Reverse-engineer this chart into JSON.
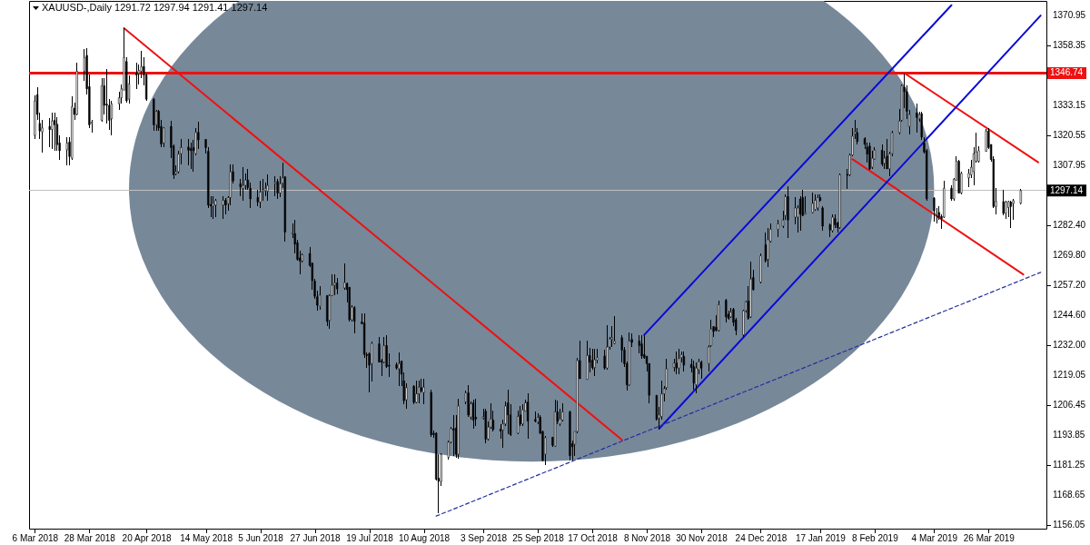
{
  "chart_data": {
    "type": "candlestick",
    "title": "XAUUSD-,Daily 1291.72 1297.94 1291.41 1297.14",
    "x": [
      "2018-03-06",
      "2018-03-07",
      "2018-03-08",
      "2018-03-09",
      "2018-03-12",
      "2018-03-13",
      "2018-03-14",
      "2018-03-15",
      "2018-03-16",
      "2018-03-19",
      "2018-03-20",
      "2018-03-21",
      "2018-03-22",
      "2018-03-23",
      "2018-03-26",
      "2018-03-27",
      "2018-03-28",
      "2018-03-29",
      "2018-04-02",
      "2018-04-03",
      "2018-04-04",
      "2018-04-05",
      "2018-04-06",
      "2018-04-09",
      "2018-04-10",
      "2018-04-11",
      "2018-04-12",
      "2018-04-13",
      "2018-04-16",
      "2018-04-17",
      "2018-04-18",
      "2018-04-19",
      "2018-04-20",
      "2018-04-23",
      "2018-04-24",
      "2018-04-25",
      "2018-04-26",
      "2018-04-27",
      "2018-04-30",
      "2018-05-01",
      "2018-05-02",
      "2018-05-03",
      "2018-05-04",
      "2018-05-07",
      "2018-05-08",
      "2018-05-09",
      "2018-05-10",
      "2018-05-11",
      "2018-05-14",
      "2018-05-15",
      "2018-05-16",
      "2018-05-17",
      "2018-05-18",
      "2018-05-21",
      "2018-05-22",
      "2018-05-23",
      "2018-05-24",
      "2018-05-25",
      "2018-05-28",
      "2018-05-29",
      "2018-05-30",
      "2018-05-31",
      "2018-06-01",
      "2018-06-04",
      "2018-06-05",
      "2018-06-06",
      "2018-06-07",
      "2018-06-08",
      "2018-06-11",
      "2018-06-12",
      "2018-06-13",
      "2018-06-14",
      "2018-06-15",
      "2018-06-18",
      "2018-06-19",
      "2018-06-20",
      "2018-06-21",
      "2018-06-22",
      "2018-06-25",
      "2018-06-26",
      "2018-06-27",
      "2018-06-28",
      "2018-06-29",
      "2018-07-02",
      "2018-07-03",
      "2018-07-04",
      "2018-07-05",
      "2018-07-06",
      "2018-07-09",
      "2018-07-10",
      "2018-07-11",
      "2018-07-12",
      "2018-07-13",
      "2018-07-16",
      "2018-07-17",
      "2018-07-18",
      "2018-07-19",
      "2018-07-20",
      "2018-07-23",
      "2018-07-24",
      "2018-07-25",
      "2018-07-26",
      "2018-07-27",
      "2018-07-30",
      "2018-07-31",
      "2018-08-01",
      "2018-08-02",
      "2018-08-03",
      "2018-08-06",
      "2018-08-07",
      "2018-08-08",
      "2018-08-09",
      "2018-08-10",
      "2018-08-13",
      "2018-08-14",
      "2018-08-15",
      "2018-08-16",
      "2018-08-17",
      "2018-08-20",
      "2018-08-21",
      "2018-08-22",
      "2018-08-23",
      "2018-08-24",
      "2018-08-27",
      "2018-08-28",
      "2018-08-29",
      "2018-08-30",
      "2018-08-31",
      "2018-09-03",
      "2018-09-04",
      "2018-09-05",
      "2018-09-06",
      "2018-09-07",
      "2018-09-10",
      "2018-09-11",
      "2018-09-12",
      "2018-09-13",
      "2018-09-14",
      "2018-09-17",
      "2018-09-18",
      "2018-09-19",
      "2018-09-20",
      "2018-09-21",
      "2018-09-24",
      "2018-09-25",
      "2018-09-26",
      "2018-09-27",
      "2018-09-28",
      "2018-10-01",
      "2018-10-02",
      "2018-10-03",
      "2018-10-04",
      "2018-10-05",
      "2018-10-08",
      "2018-10-09",
      "2018-10-10",
      "2018-10-11",
      "2018-10-12",
      "2018-10-15",
      "2018-10-16",
      "2018-10-17",
      "2018-10-18",
      "2018-10-19",
      "2018-10-22",
      "2018-10-23",
      "2018-10-24",
      "2018-10-25",
      "2018-10-26",
      "2018-10-29",
      "2018-10-30",
      "2018-10-31",
      "2018-11-01",
      "2018-11-02",
      "2018-11-05",
      "2018-11-06",
      "2018-11-07",
      "2018-11-08",
      "2018-11-09",
      "2018-11-12",
      "2018-11-13",
      "2018-11-14",
      "2018-11-15",
      "2018-11-16",
      "2018-11-19",
      "2018-11-20",
      "2018-11-21",
      "2018-11-22",
      "2018-11-23",
      "2018-11-26",
      "2018-11-27",
      "2018-11-28",
      "2018-11-29",
      "2018-11-30",
      "2018-12-03",
      "2018-12-04",
      "2018-12-05",
      "2018-12-06",
      "2018-12-07",
      "2018-12-10",
      "2018-12-11",
      "2018-12-12",
      "2018-12-13",
      "2018-12-14",
      "2018-12-17",
      "2018-12-18",
      "2018-12-19",
      "2018-12-20",
      "2018-12-21",
      "2018-12-24",
      "2018-12-26",
      "2018-12-27",
      "2018-12-28",
      "2018-12-31",
      "2019-01-02",
      "2019-01-03",
      "2019-01-04",
      "2019-01-07",
      "2019-01-08",
      "2019-01-09",
      "2019-01-10",
      "2019-01-11",
      "2019-01-14",
      "2019-01-15",
      "2019-01-16",
      "2019-01-17",
      "2019-01-18",
      "2019-01-21",
      "2019-01-22",
      "2019-01-23",
      "2019-01-24",
      "2019-01-25",
      "2019-01-28",
      "2019-01-29",
      "2019-01-30",
      "2019-01-31",
      "2019-02-01",
      "2019-02-04",
      "2019-02-05",
      "2019-02-06",
      "2019-02-07",
      "2019-02-08",
      "2019-02-11",
      "2019-02-12",
      "2019-02-13",
      "2019-02-14",
      "2019-02-15",
      "2019-02-18",
      "2019-02-19",
      "2019-02-20",
      "2019-02-21",
      "2019-02-22",
      "2019-02-25",
      "2019-02-26",
      "2019-02-27",
      "2019-02-28",
      "2019-03-01",
      "2019-03-04",
      "2019-03-05",
      "2019-03-06",
      "2019-03-07",
      "2019-03-08",
      "2019-03-11",
      "2019-03-12",
      "2019-03-13",
      "2019-03-14",
      "2019-03-15",
      "2019-03-18",
      "2019-03-19",
      "2019-03-20",
      "2019-03-21",
      "2019-03-22",
      "2019-03-25",
      "2019-03-26",
      "2019-03-27",
      "2019-03-28",
      "2019-03-29",
      "2019-04-01",
      "2019-04-02",
      "2019-04-03",
      "2019-04-04",
      "2019-04-05",
      "2019-04-08"
    ],
    "ohlc": [
      [
        1320.4,
        1337.2,
        1319.0,
        1335.0
      ],
      [
        1337.6,
        1340.8,
        1326.8,
        1329.3
      ],
      [
        1325.5,
        1330.0,
        1319.0,
        1322.3
      ],
      [
        1321.9,
        1326.8,
        1313.3,
        1323.6
      ],
      [
        1324.2,
        1327.8,
        1315.3,
        1322.9
      ],
      [
        1322.9,
        1330.0,
        1314.7,
        1326.5
      ],
      [
        1326.8,
        1330.2,
        1314.0,
        1324.9
      ],
      [
        1325.1,
        1328.0,
        1314.0,
        1316.5
      ],
      [
        1317.2,
        1320.4,
        1310.2,
        1314.0
      ],
      [
        1314.3,
        1319.7,
        1307.6,
        1317.2
      ],
      [
        1317.6,
        1319.7,
        1307.6,
        1311.5
      ],
      [
        1310.8,
        1337.0,
        1310.2,
        1332.5
      ],
      [
        1331.9,
        1334.2,
        1326.8,
        1329.3
      ],
      [
        1329.3,
        1351.0,
        1329.0,
        1347.5
      ],
      [
        1347.5,
        1356.7,
        1343.3,
        1353.3
      ],
      [
        1354.2,
        1357.4,
        1337.6,
        1340.1
      ],
      [
        1341.0,
        1346.0,
        1323.6,
        1324.9
      ],
      [
        1325.5,
        1326.8,
        1321.6,
        1326.0
      ],
      [
        1326.8,
        1344.6,
        1326.1,
        1341.4
      ],
      [
        1341.4,
        1344.6,
        1329.3,
        1333.1
      ],
      [
        1333.6,
        1348.4,
        1325.5,
        1333.1
      ],
      [
        1333.1,
        1335.7,
        1322.9,
        1326.8
      ],
      [
        1327.4,
        1335.0,
        1320.4,
        1333.8
      ],
      [
        1333.8,
        1338.9,
        1331.2,
        1336.3
      ],
      [
        1336.3,
        1342.0,
        1333.8,
        1340.1
      ],
      [
        1339.5,
        1365.7,
        1339.5,
        1353.3
      ],
      [
        1351.6,
        1353.5,
        1334.2,
        1335.0
      ],
      [
        1335.7,
        1345.9,
        1333.8,
        1342.1
      ],
      [
        1346.5,
        1351.0,
        1340.1,
        1345.9
      ],
      [
        1346.5,
        1350.4,
        1342.1,
        1347.8
      ],
      [
        1347.5,
        1356.1,
        1344.6,
        1349.5
      ],
      [
        1349.5,
        1353.5,
        1341.4,
        1345.9
      ],
      [
        1345.9,
        1346.5,
        1335.0,
        1335.7
      ],
      [
        1335.7,
        1336.0,
        1322.3,
        1324.9
      ],
      [
        1324.9,
        1331.2,
        1322.3,
        1330.6
      ],
      [
        1330.6,
        1331.2,
        1322.3,
        1323.6
      ],
      [
        1324.2,
        1326.8,
        1315.3,
        1316.8
      ],
      [
        1317.2,
        1323.9,
        1315.3,
        1323.6
      ],
      [
        1324.2,
        1326.5,
        1310.8,
        1315.3
      ],
      [
        1315.9,
        1316.5,
        1301.9,
        1303.8
      ],
      [
        1304.2,
        1307.6,
        1303.6,
        1305.1
      ],
      [
        1305.1,
        1314.0,
        1304.4,
        1312.5
      ],
      [
        1312.7,
        1319.1,
        1308.3,
        1315.3
      ],
      [
        1315.5,
        1319.1,
        1307.6,
        1314.2
      ],
      [
        1314.9,
        1317.2,
        1306.3,
        1314.0
      ],
      [
        1315.3,
        1318.5,
        1305.1,
        1314.0
      ],
      [
        1312.7,
        1323.6,
        1312.1,
        1321.7
      ],
      [
        1321.7,
        1326.1,
        1314.7,
        1318.5
      ],
      [
        1318.7,
        1319.1,
        1312.7,
        1315.3
      ],
      [
        1313.7,
        1315.3,
        1289.8,
        1291.0
      ],
      [
        1291.3,
        1294.8,
        1285.9,
        1290.6
      ],
      [
        1290.6,
        1294.8,
        1285.3,
        1291.7
      ],
      [
        1291.0,
        1293.6,
        1286.0,
        1292.9
      ],
      [
        1291.0,
        1294.8,
        1285.3,
        1293.0
      ],
      [
        1293.0,
        1294.0,
        1287.2,
        1291.0
      ],
      [
        1291.6,
        1294.8,
        1288.5,
        1294.2
      ],
      [
        1294.2,
        1308.3,
        1291.0,
        1305.1
      ],
      [
        1305.1,
        1308.3,
        1300.0,
        1301.2
      ],
      [
        1300.0,
        1301.9,
        1294.9,
        1298.7
      ],
      [
        1298.1,
        1307.0,
        1293.0,
        1299.3
      ],
      [
        1299.3,
        1304.4,
        1297.4,
        1301.6
      ],
      [
        1301.6,
        1306.3,
        1297.4,
        1298.4
      ],
      [
        1298.1,
        1300.6,
        1289.8,
        1293.6
      ],
      [
        1294.2,
        1297.4,
        1290.4,
        1292.3
      ],
      [
        1292.3,
        1301.2,
        1289.8,
        1296.5
      ],
      [
        1296.8,
        1301.9,
        1293.0,
        1297.4
      ],
      [
        1297.0,
        1300.6,
        1294.8,
        1298.1
      ],
      [
        1296.8,
        1303.8,
        1292.9,
        1299.3
      ],
      [
        1300.0,
        1303.2,
        1294.9,
        1300.6
      ],
      [
        1301.0,
        1301.9,
        1293.6,
        1296.1
      ],
      [
        1296.1,
        1303.2,
        1294.2,
        1300.0
      ],
      [
        1300.2,
        1308.9,
        1298.1,
        1302.5
      ],
      [
        1302.9,
        1303.2,
        1275.7,
        1279.6
      ],
      [
        1278.9,
        1283.4,
        1277.0,
        1279.3
      ],
      [
        1279.0,
        1284.7,
        1270.6,
        1274.5
      ],
      [
        1275.1,
        1276.4,
        1267.4,
        1268.1
      ],
      [
        1268.7,
        1271.9,
        1261.7,
        1267.4
      ],
      [
        1267.4,
        1270.6,
        1266.8,
        1270.0
      ],
      [
        1270.6,
        1273.2,
        1264.9,
        1265.5
      ],
      [
        1266.5,
        1266.8,
        1255.3,
        1259.1
      ],
      [
        1258.9,
        1259.8,
        1251.5,
        1252.5
      ],
      [
        1252.3,
        1254.7,
        1246.4,
        1248.7
      ],
      [
        1248.3,
        1256.6,
        1247.0,
        1253.0
      ],
      [
        1252.8,
        1252.8,
        1240.0,
        1241.9
      ],
      [
        1242.3,
        1253.5,
        1238.7,
        1252.8
      ],
      [
        1252.8,
        1261.7,
        1252.5,
        1257.2
      ],
      [
        1257.2,
        1261.7,
        1252.8,
        1258.1
      ],
      [
        1258.1,
        1260.4,
        1253.4,
        1255.6
      ],
      [
        1256.0,
        1266.5,
        1255.3,
        1258.3
      ],
      [
        1257.9,
        1258.3,
        1250.0,
        1255.3
      ],
      [
        1256.3,
        1256.3,
        1241.9,
        1242.6
      ],
      [
        1242.6,
        1248.7,
        1241.9,
        1247.9
      ],
      [
        1247.7,
        1248.3,
        1236.8,
        1241.9
      ],
      [
        1241.7,
        1245.1,
        1240.6,
        1240.9
      ],
      [
        1241.3,
        1245.4,
        1226.6,
        1227.9
      ],
      [
        1227.9,
        1228.8,
        1222.2,
        1227.5
      ],
      [
        1228.3,
        1228.8,
        1211.9,
        1223.4
      ],
      [
        1224.1,
        1233.4,
        1216.4,
        1232.6
      ],
      [
        1232.4,
        1235.5,
        1224.7,
        1224.7
      ],
      [
        1225.3,
        1226.0,
        1219.0,
        1224.7
      ],
      [
        1224.7,
        1235.5,
        1224.3,
        1231.7
      ],
      [
        1231.7,
        1236.2,
        1222.2,
        1222.8
      ],
      [
        1223.4,
        1228.5,
        1218.3,
        1223.0
      ],
      [
        1223.6,
        1224.7,
        1221.5,
        1222.2
      ],
      [
        1221.9,
        1228.8,
        1214.5,
        1224.1
      ],
      [
        1225.1,
        1225.3,
        1214.5,
        1219.6
      ],
      [
        1216.8,
        1220.2,
        1206.8,
        1208.4
      ],
      [
        1208.8,
        1215.8,
        1204.9,
        1213.9
      ],
      [
        1214.5,
        1215.1,
        1206.8,
        1207.7
      ],
      [
        1207.7,
        1217.0,
        1207.5,
        1211.3
      ],
      [
        1211.3,
        1217.0,
        1207.5,
        1214.1
      ],
      [
        1213.9,
        1217.7,
        1211.9,
        1212.6
      ],
      [
        1211.9,
        1217.7,
        1206.8,
        1214.1
      ],
      [
        1211.9,
        1213.0,
        1193.0,
        1194.1
      ],
      [
        1194.7,
        1195.8,
        1192.7,
        1194.1
      ],
      [
        1194.7,
        1195.0,
        1174.9,
        1175.2
      ],
      [
        1175.7,
        1185.8,
        1160.9,
        1174.4
      ],
      [
        1174.3,
        1186.4,
        1172.4,
        1185.8
      ],
      [
        1184.5,
        1191.6,
        1183.6,
        1190.9
      ],
      [
        1190.9,
        1197.3,
        1190.3,
        1196.6
      ],
      [
        1196.6,
        1202.4,
        1185.2,
        1196.0
      ],
      [
        1196.9,
        1202.4,
        1184.5,
        1185.8
      ],
      [
        1185.8,
        1209.4,
        1183.9,
        1206.2
      ],
      [
        1207.9,
        1212.6,
        1206.8,
        1211.7
      ],
      [
        1211.7,
        1214.8,
        1201.5,
        1202.4
      ],
      [
        1201.5,
        1208.1,
        1200.5,
        1207.1
      ],
      [
        1207.5,
        1208.8,
        1196.6,
        1200.2
      ],
      [
        1201.5,
        1209.4,
        1197.9,
        1200.7
      ],
      [
        1201.0,
        1204.9,
        1200.4,
        1201.6
      ],
      [
        1204.0,
        1204.9,
        1190.3,
        1192.2
      ],
      [
        1192.2,
        1199.8,
        1191.6,
        1197.3
      ],
      [
        1197.3,
        1207.5,
        1196.6,
        1200.7
      ],
      [
        1200.2,
        1204.3,
        1195.4,
        1196.2
      ],
      [
        1196.4,
        1198.5,
        1192.2,
        1195.6
      ],
      [
        1196.0,
        1200.5,
        1188.4,
        1198.6
      ],
      [
        1198.6,
        1208.1,
        1197.9,
        1206.2
      ],
      [
        1207.5,
        1213.0,
        1194.1,
        1202.4
      ],
      [
        1202.4,
        1206.8,
        1193.5,
        1194.1
      ],
      [
        1194.7,
        1204.3,
        1194.1,
        1201.8
      ],
      [
        1202.4,
        1206.2,
        1197.9,
        1198.6
      ],
      [
        1198.6,
        1206.8,
        1197.9,
        1204.6
      ],
      [
        1204.0,
        1208.8,
        1203.7,
        1207.5
      ],
      [
        1207.9,
        1211.7,
        1192.2,
        1199.8
      ],
      [
        1200.5,
        1204.0,
        1199.2,
        1199.8
      ],
      [
        1199.4,
        1203.0,
        1198.6,
        1201.4
      ],
      [
        1201.5,
        1202.4,
        1194.1,
        1194.7
      ],
      [
        1195.4,
        1196.0,
        1182.6,
        1183.2
      ],
      [
        1185.8,
        1193.5,
        1181.3,
        1192.8
      ],
      [
        1193.0,
        1193.0,
        1189.0,
        1189.6
      ],
      [
        1189.2,
        1208.8,
        1189.0,
        1203.7
      ],
      [
        1203.7,
        1208.4,
        1198.6,
        1199.8
      ],
      [
        1198.6,
        1204.9,
        1197.9,
        1200.7
      ],
      [
        1200.2,
        1207.5,
        1199.8,
        1203.7
      ],
      [
        1203.7,
        1204.3,
        1183.2,
        1185.2
      ],
      [
        1190.3,
        1191.6,
        1183.2,
        1189.0
      ],
      [
        1190.0,
        1195.4,
        1185.2,
        1195.4
      ],
      [
        1195.4,
        1226.6,
        1194.7,
        1225.4
      ],
      [
        1225.4,
        1233.6,
        1217.7,
        1217.7
      ],
      [
        1217.4,
        1233.6,
        1217.1,
        1227.5
      ],
      [
        1227.5,
        1230.8,
        1220.2,
        1224.7
      ],
      [
        1225.4,
        1230.4,
        1221.5,
        1222.4
      ],
      [
        1222.4,
        1230.4,
        1219.0,
        1225.7
      ],
      [
        1225.6,
        1230.4,
        1224.1,
        1226.6
      ],
      [
        1227.3,
        1230.1,
        1221.5,
        1222.2
      ],
      [
        1222.2,
        1240.3,
        1221.5,
        1231.1
      ],
      [
        1231.1,
        1235.5,
        1229.8,
        1234.5
      ],
      [
        1234.3,
        1240.0,
        1231.1,
        1235.0
      ],
      [
        1232.6,
        1244.1,
        1232.4,
        1233.6
      ],
      [
        1235.0,
        1236.2,
        1224.7,
        1229.8
      ],
      [
        1229.8,
        1231.0,
        1222.5,
        1224.0
      ],
      [
        1224.1,
        1225.0,
        1212.6,
        1215.1
      ],
      [
        1215.1,
        1237.4,
        1214.5,
        1233.6
      ],
      [
        1234.3,
        1236.8,
        1231.1,
        1233.0
      ],
      [
        1233.6,
        1236.2,
        1228.5,
        1231.7
      ],
      [
        1232.4,
        1236.2,
        1226.0,
        1227.3
      ],
      [
        1227.9,
        1236.2,
        1226.0,
        1226.6
      ],
      [
        1227.2,
        1227.2,
        1220.9,
        1224.1
      ],
      [
        1224.1,
        1224.1,
        1207.5,
        1210.7
      ],
      [
        1210.7,
        1210.7,
        1200.2,
        1200.5
      ],
      [
        1201.1,
        1205.6,
        1196.6,
        1202.4
      ],
      [
        1201.7,
        1216.8,
        1200.5,
        1211.3
      ],
      [
        1211.3,
        1214.5,
        1208.1,
        1213.5
      ],
      [
        1213.9,
        1226.0,
        1213.2,
        1221.9
      ],
      [
        1222.5,
        1226.0,
        1220.9,
        1224.3
      ],
      [
        1224.3,
        1229.2,
        1219.6,
        1222.2
      ],
      [
        1222.2,
        1230.4,
        1219.6,
        1226.2
      ],
      [
        1226.6,
        1229.2,
        1224.7,
        1227.9
      ],
      [
        1227.2,
        1229.2,
        1220.9,
        1223.4
      ],
      [
        1223.8,
        1226.0,
        1220.2,
        1222.4
      ],
      [
        1222.8,
        1225.3,
        1213.2,
        1215.8
      ],
      [
        1215.1,
        1224.7,
        1211.7,
        1222.2
      ],
      [
        1221.5,
        1226.0,
        1219.6,
        1224.9
      ],
      [
        1224.7,
        1225.3,
        1217.7,
        1222.2
      ],
      [
        1224.1,
        1231.7,
        1220.9,
        1231.1
      ],
      [
        1231.7,
        1242.6,
        1231.1,
        1238.7
      ],
      [
        1239.7,
        1240.0,
        1235.5,
        1237.7
      ],
      [
        1239.4,
        1244.5,
        1237.5,
        1238.1
      ],
      [
        1238.1,
        1250.8,
        1237.5,
        1248.9
      ],
      [
        1250.8,
        1251.5,
        1241.3,
        1243.8
      ],
      [
        1244.9,
        1246.4,
        1242.6,
        1243.2
      ],
      [
        1243.8,
        1247.7,
        1243.2,
        1245.8
      ],
      [
        1247.0,
        1247.7,
        1240.0,
        1241.5
      ],
      [
        1242.6,
        1243.2,
        1236.2,
        1238.1
      ],
      [
        1236.2,
        1247.0,
        1235.5,
        1246.4
      ],
      [
        1246.4,
        1250.8,
        1245.8,
        1250.2
      ],
      [
        1250.5,
        1256.6,
        1242.6,
        1243.2
      ],
      [
        1243.8,
        1267.0,
        1243.2,
        1259.8
      ],
      [
        1260.4,
        1263.6,
        1254.7,
        1255.3
      ],
      [
        1258.5,
        1270.6,
        1257.9,
        1269.6
      ],
      [
        1274.2,
        1279.5,
        1266.8,
        1267.4
      ],
      [
        1268.1,
        1281.5,
        1264.9,
        1276.4
      ],
      [
        1275.7,
        1283.4,
        1275.1,
        1280.8
      ],
      [
        1280.8,
        1284.7,
        1277.6,
        1283.1
      ],
      [
        1282.1,
        1288.5,
        1281.5,
        1284.7
      ],
      [
        1286.6,
        1295.5,
        1284.7,
        1294.6
      ],
      [
        1294.6,
        1298.9,
        1277.0,
        1284.7
      ],
      [
        1285.9,
        1294.2,
        1282.7,
        1289.8
      ],
      [
        1285.9,
        1290.8,
        1279.5,
        1289.8
      ],
      [
        1293.6,
        1294.9,
        1280.2,
        1287.2
      ],
      [
        1294.2,
        1297.4,
        1286.2,
        1286.6
      ],
      [
        1287.2,
        1294.9,
        1287.2,
        1287.8
      ],
      [
        1287.8,
        1296.1,
        1287.5,
        1291.7
      ],
      [
        1289.1,
        1295.5,
        1288.5,
        1293.0
      ],
      [
        1289.8,
        1295.5,
        1288.5,
        1294.2
      ],
      [
        1294.2,
        1295.5,
        1292.3,
        1292.9
      ],
      [
        1289.8,
        1290.4,
        1280.2,
        1282.1
      ],
      [
        1282.7,
        1283.4,
        1277.6,
        1280.5
      ],
      [
        1280.2,
        1287.2,
        1279.5,
        1285.9
      ],
      [
        1285.3,
        1287.2,
        1281.5,
        1282.7
      ],
      [
        1283.4,
        1284.0,
        1279.6,
        1281.5
      ],
      [
        1281.5,
        1304.4,
        1280.8,
        1303.8
      ],
      [
        1304.0,
        1306.3,
        1298.0,
        1303.6
      ],
      [
        1303.8,
        1312.7,
        1303.2,
        1312.1
      ],
      [
        1312.1,
        1323.6,
        1311.5,
        1320.1
      ],
      [
        1321.0,
        1326.8,
        1319.1,
        1321.9
      ],
      [
        1321.6,
        1323.6,
        1316.6,
        1317.8
      ],
      [
        1319.1,
        1319.7,
        1314.7,
        1316.6
      ],
      [
        1315.5,
        1317.2,
        1308.9,
        1312.5
      ],
      [
        1315.9,
        1317.2,
        1305.7,
        1306.3
      ],
      [
        1307.0,
        1314.0,
        1306.3,
        1310.8
      ],
      [
        1310.4,
        1315.3,
        1310.2,
        1314.2
      ],
      [
        1314.2,
        1316.6,
        1307.4,
        1308.3
      ],
      [
        1308.6,
        1314.0,
        1306.3,
        1310.8
      ],
      [
        1311.7,
        1319.1,
        1306.3,
        1306.3
      ],
      [
        1306.3,
        1313.4,
        1303.2,
        1312.7
      ],
      [
        1312.7,
        1322.3,
        1311.5,
        1321.6
      ],
      [
        1321.6,
        1331.6,
        1321.0,
        1326.5
      ],
      [
        1326.8,
        1342.1,
        1326.1,
        1341.4
      ],
      [
        1340.8,
        1346.7,
        1331.9,
        1338.9
      ],
      [
        1338.9,
        1341.4,
        1327.4,
        1330.6
      ],
      [
        1324.2,
        1331.2,
        1321.0,
        1329.3
      ],
      [
        1329.9,
        1333.8,
        1321.6,
        1328.0
      ],
      [
        1327.4,
        1330.6,
        1326.1,
        1329.3
      ],
      [
        1329.6,
        1330.6,
        1318.5,
        1319.7
      ],
      [
        1317.2,
        1319.7,
        1312.7,
        1313.4
      ],
      [
        1314.0,
        1314.6,
        1292.9,
        1293.6
      ],
      [
        1293.9,
        1294.2,
        1284.0,
        1288.5
      ],
      [
        1287.0,
        1289.8,
        1283.4,
        1287.9
      ],
      [
        1287.9,
        1290.4,
        1284.7,
        1285.9
      ],
      [
        1286.2,
        1287.2,
        1280.8,
        1285.3
      ],
      [
        1285.9,
        1301.2,
        1285.7,
        1298.1
      ],
      [
        1298.1,
        1299.3,
        1293.0,
        1293.6
      ],
      [
        1293.6,
        1302.5,
        1293.0,
        1301.9
      ],
      [
        1301.5,
        1311.5,
        1301.2,
        1309.5
      ],
      [
        1309.5,
        1310.2,
        1295.9,
        1296.1
      ],
      [
        1296.1,
        1305.1,
        1295.5,
        1304.4
      ],
      [
        1302.5,
        1306.3,
        1298.7,
        1304.4
      ],
      [
        1303.8,
        1310.2,
        1302.5,
        1307.0
      ],
      [
        1305.1,
        1315.3,
        1299.3,
        1312.7
      ],
      [
        1309.5,
        1321.6,
        1308.9,
        1313.4
      ],
      [
        1309.5,
        1315.9,
        1309.1,
        1314.0
      ],
      [
        1313.7,
        1323.2,
        1313.4,
        1322.3
      ],
      [
        1322.3,
        1323.6,
        1314.6,
        1315.3
      ],
      [
        1316.6,
        1316.6,
        1309.5,
        1310.2
      ],
      [
        1310.4,
        1311.5,
        1289.8,
        1290.4
      ],
      [
        1290.4,
        1298.1,
        1287.2,
        1292.5
      ],
      [
        1292.5,
        1297.4,
        1286.6,
        1287.5
      ],
      [
        1287.5,
        1292.9,
        1285.3,
        1292.3
      ],
      [
        1290.0,
        1292.9,
        1285.9,
        1292.5
      ],
      [
        1292.3,
        1292.9,
        1281.5,
        1290.4
      ],
      [
        1291.7,
        1293.6,
        1284.7,
        1292.9
      ],
      [
        1291.72,
        1297.94,
        1291.41,
        1297.14
      ]
    ],
    "series": [
      {
        "type": "line",
        "x": [
          "2018-04-11",
          "2018-10-29"
        ],
        "values": [
          1365.7,
          1191.9
        ],
        "color": "#ee1111"
      },
      {
        "type": "line",
        "x": [
          "2019-02-20",
          "2019-04-15"
        ],
        "values": [
          1346.7,
          1309.1
        ],
        "color": "#ee1111"
      },
      {
        "type": "line",
        "x": [
          "2019-01-30",
          "2019-04-09"
        ],
        "values": [
          1310.4,
          1261.7
        ],
        "color": "#ee1111"
      },
      {
        "type": "line",
        "x": [
          "2018-11-13",
          "2019-04-16"
        ],
        "values": [
          1196.6,
          1371.0
        ],
        "color": "#0a0ad8"
      },
      {
        "type": "line",
        "x": [
          "2018-11-07",
          "2019-03-11"
        ],
        "values": [
          1236.2,
          1375.4
        ],
        "color": "#0a0ad8"
      },
      {
        "type": "line",
        "x": [
          "2018-08-15",
          "2019-04-16"
        ],
        "values": [
          1159.7,
          1262.6
        ],
        "color": "#2030a0",
        "line_style": "dashed"
      }
    ],
    "ref_lines": [
      {
        "axis": "y",
        "value": 1346.74,
        "label": "1346.74",
        "color": "#ee1111"
      },
      {
        "axis": "y",
        "value": 1297.14,
        "label": "1297.14",
        "color": "#c0c0c0"
      }
    ],
    "bands": [
      {
        "axis": "x",
        "from": "2018-04-13",
        "to": "2019-03-04",
        "color": "#778899"
      }
    ],
    "xlim": [
      "2018-03-05T12:00",
      "2019-04-16T12:00"
    ],
    "xticks": [
      {
        "value": "2018-03-06",
        "label": "6 Mar 2018"
      },
      {
        "value": "2018-03-28",
        "label": "28 Mar 2018"
      },
      {
        "value": "2018-04-20",
        "label": "20 Apr 2018"
      },
      {
        "value": "2018-05-14",
        "label": "14 May 2018"
      },
      {
        "value": "2018-06-05",
        "label": "5 Jun 2018"
      },
      {
        "value": "2018-06-27",
        "label": "27 Jun 2018"
      },
      {
        "value": "2018-07-19",
        "label": "19 Jul 2018"
      },
      {
        "value": "2018-08-10",
        "label": "10 Aug 2018"
      },
      {
        "value": "2018-09-03",
        "label": "3 Sep 2018"
      },
      {
        "value": "2018-09-25",
        "label": "25 Sep 2018"
      },
      {
        "value": "2018-10-17",
        "label": "17 Oct 2018"
      },
      {
        "value": "2018-11-08",
        "label": "8 Nov 2018"
      },
      {
        "value": "2018-11-30",
        "label": "30 Nov 2018"
      },
      {
        "value": "2018-12-24",
        "label": "24 Dec 2018"
      },
      {
        "value": "2019-01-17",
        "label": "17 Jan 2019"
      },
      {
        "value": "2019-02-08",
        "label": "8 Feb 2019"
      },
      {
        "value": "2019-03-04",
        "label": "4 Mar 2019"
      },
      {
        "value": "2019-03-26",
        "label": "26 Mar 2019"
      }
    ],
    "ylim": [
      1154.4,
      1377.2
    ],
    "yticks": [
      1370.95,
      1358.35,
      1333.15,
      1320.55,
      1307.95,
      {
        "value": 1282.4,
        "label": "1282.40"
      },
      {
        "value": 1269.8,
        "label": "1269.80"
      },
      {
        "value": 1257.2,
        "label": "1257.20"
      },
      {
        "value": 1244.6,
        "label": "1244.60"
      },
      {
        "value": 1232,
        "label": "1232.00"
      },
      1219.05,
      1206.45,
      1193.85,
      1181.25,
      1168.65,
      1156.05
    ]
  }
}
